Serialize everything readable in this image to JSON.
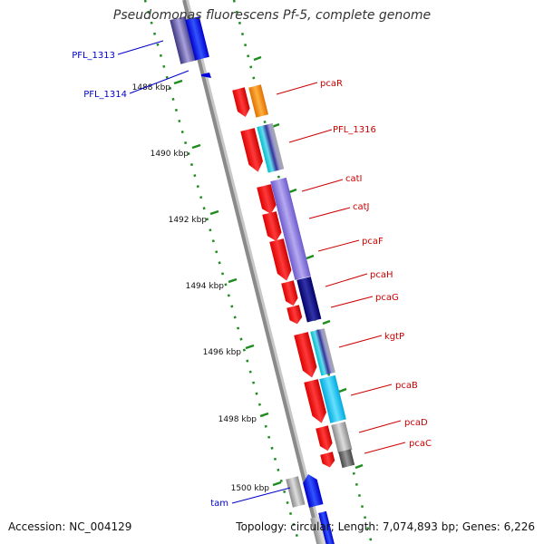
{
  "title": "Pseudomonas fluorescens Pf-5, complete genome",
  "footer": {
    "accession_label": "Accession:",
    "accession": "NC_004129",
    "topology_label": "Topology:",
    "topology": "circular",
    "length_label": "Length:",
    "length": "7,074,893 bp",
    "genes_label": "Genes:",
    "genes": "6,226"
  },
  "colors": {
    "backbone": "#888888",
    "tick": "#1e8c1e",
    "red_gene": "#ff1a1a",
    "label_red": "#cc0000",
    "label_blue": "#0000cc"
  },
  "ticks": [
    {
      "label": "1488 kbp"
    },
    {
      "label": "1490 kbp"
    },
    {
      "label": "1492 kbp"
    },
    {
      "label": "1494 kbp"
    },
    {
      "label": "1496 kbp"
    },
    {
      "label": "1498 kbp"
    },
    {
      "label": "1500 kbp"
    }
  ],
  "genes": [
    {
      "name": "PFL_1313",
      "color": "label_blue"
    },
    {
      "name": "PFL_1314",
      "color": "label_blue"
    },
    {
      "name": "pcaR",
      "color": "label_red"
    },
    {
      "name": "PFL_1316",
      "color": "label_red"
    },
    {
      "name": "catI",
      "color": "label_red"
    },
    {
      "name": "catJ",
      "color": "label_red"
    },
    {
      "name": "pcaF",
      "color": "label_red"
    },
    {
      "name": "pcaH",
      "color": "label_red"
    },
    {
      "name": "pcaG",
      "color": "label_red"
    },
    {
      "name": "kgtP",
      "color": "label_red"
    },
    {
      "name": "pcaB",
      "color": "label_red"
    },
    {
      "name": "pcaD",
      "color": "label_red"
    },
    {
      "name": "pcaC",
      "color": "label_red"
    },
    {
      "name": "tam",
      "color": "label_blue"
    }
  ]
}
